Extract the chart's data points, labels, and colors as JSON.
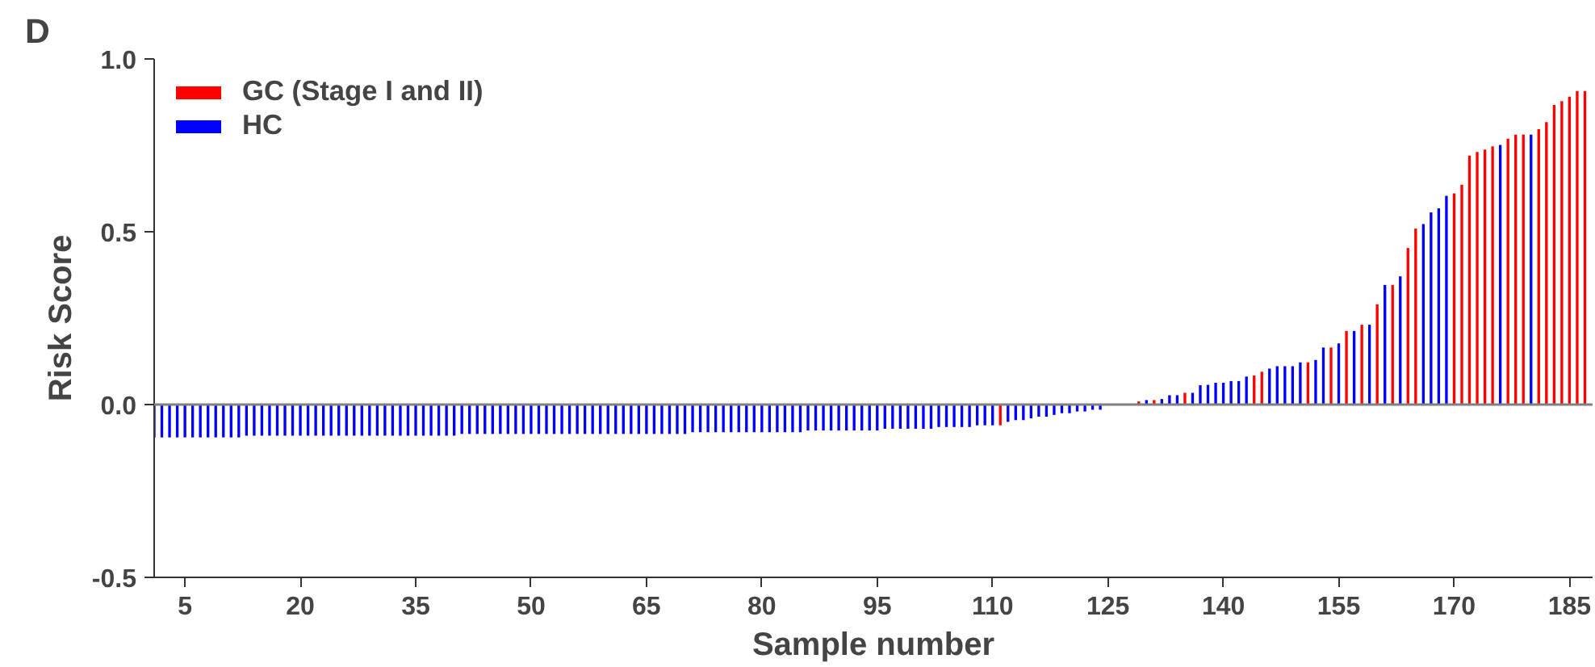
{
  "chart_data": {
    "type": "bar",
    "xlabel": "Sample number",
    "ylabel": "Risk Score",
    "annotations": [
      "D"
    ],
    "xlim": [
      1,
      188
    ],
    "xticks": [
      5,
      20,
      35,
      50,
      65,
      80,
      95,
      110,
      125,
      140,
      155,
      170,
      185
    ],
    "ylim": [
      -0.5,
      1.0
    ],
    "yticks": [
      -0.5,
      {
        "value": 0,
        "label": "0.0"
      },
      0.5,
      {
        "value": 1.0,
        "label": "1.0"
      }
    ],
    "grid": false,
    "legend": "top left",
    "ref_lines": [
      {
        "axis": "y",
        "value": 0,
        "color": "#808080"
      }
    ],
    "series": [
      {
        "name": "GC (Stage I and II)",
        "color": "#ff0000",
        "x": [
          111,
          129,
          131,
          135,
          144,
          145,
          151,
          154,
          156,
          158,
          160,
          162,
          164,
          165,
          170,
          171,
          172,
          173,
          174,
          175,
          177,
          178,
          179,
          181,
          182,
          183,
          184,
          185,
          186,
          187
        ],
        "values": [
          -0.06,
          0.009,
          0.013,
          0.034,
          0.084,
          0.095,
          0.122,
          0.165,
          0.213,
          0.231,
          0.29,
          0.346,
          0.453,
          0.509,
          0.611,
          0.636,
          0.72,
          0.731,
          0.738,
          0.747,
          0.769,
          0.781,
          0.781,
          0.797,
          0.817,
          0.867,
          0.878,
          0.891,
          0.907,
          0.907
        ]
      },
      {
        "name": "HC",
        "color": "#0000ff",
        "x": [
          1,
          2,
          3,
          4,
          5,
          6,
          7,
          8,
          9,
          10,
          11,
          12,
          13,
          14,
          15,
          16,
          17,
          18,
          19,
          20,
          21,
          22,
          23,
          24,
          25,
          26,
          27,
          28,
          29,
          30,
          31,
          32,
          33,
          34,
          35,
          36,
          37,
          38,
          39,
          40,
          41,
          42,
          43,
          44,
          45,
          46,
          47,
          48,
          49,
          50,
          51,
          52,
          53,
          54,
          55,
          56,
          57,
          58,
          59,
          60,
          61,
          62,
          63,
          64,
          65,
          66,
          67,
          68,
          69,
          70,
          71,
          72,
          73,
          74,
          75,
          76,
          77,
          78,
          79,
          80,
          81,
          82,
          83,
          84,
          85,
          86,
          87,
          88,
          89,
          90,
          91,
          92,
          93,
          94,
          95,
          96,
          97,
          98,
          99,
          100,
          101,
          102,
          103,
          104,
          105,
          106,
          107,
          108,
          109,
          110,
          112,
          113,
          114,
          115,
          116,
          117,
          118,
          119,
          120,
          121,
          122,
          123,
          124,
          125,
          126,
          127,
          128,
          130,
          132,
          133,
          134,
          136,
          137,
          138,
          139,
          140,
          141,
          142,
          143,
          146,
          147,
          148,
          149,
          150,
          152,
          153,
          155,
          157,
          159,
          161,
          163,
          166,
          167,
          168,
          169,
          176,
          180
        ],
        "values": [
          -0.095,
          -0.095,
          -0.095,
          -0.095,
          -0.095,
          -0.095,
          -0.095,
          -0.095,
          -0.095,
          -0.095,
          -0.095,
          -0.095,
          -0.09,
          -0.09,
          -0.09,
          -0.09,
          -0.09,
          -0.09,
          -0.09,
          -0.09,
          -0.09,
          -0.09,
          -0.09,
          -0.09,
          -0.09,
          -0.09,
          -0.09,
          -0.09,
          -0.09,
          -0.09,
          -0.09,
          -0.09,
          -0.09,
          -0.09,
          -0.09,
          -0.09,
          -0.09,
          -0.09,
          -0.09,
          -0.09,
          -0.085,
          -0.085,
          -0.085,
          -0.085,
          -0.085,
          -0.085,
          -0.085,
          -0.085,
          -0.085,
          -0.085,
          -0.085,
          -0.085,
          -0.085,
          -0.085,
          -0.085,
          -0.085,
          -0.085,
          -0.085,
          -0.085,
          -0.085,
          -0.085,
          -0.085,
          -0.085,
          -0.085,
          -0.085,
          -0.085,
          -0.085,
          -0.085,
          -0.085,
          -0.085,
          -0.08,
          -0.08,
          -0.08,
          -0.08,
          -0.08,
          -0.08,
          -0.08,
          -0.08,
          -0.08,
          -0.08,
          -0.08,
          -0.08,
          -0.08,
          -0.08,
          -0.08,
          -0.075,
          -0.075,
          -0.075,
          -0.075,
          -0.075,
          -0.075,
          -0.075,
          -0.075,
          -0.075,
          -0.075,
          -0.07,
          -0.07,
          -0.07,
          -0.07,
          -0.07,
          -0.07,
          -0.07,
          -0.065,
          -0.065,
          -0.065,
          -0.065,
          -0.065,
          -0.06,
          -0.06,
          -0.06,
          -0.05,
          -0.045,
          -0.045,
          -0.04,
          -0.035,
          -0.035,
          -0.03,
          -0.025,
          -0.025,
          -0.02,
          -0.02,
          -0.015,
          -0.015,
          null,
          null,
          null,
          null,
          0.013,
          0.016,
          0.027,
          0.027,
          0.034,
          0.056,
          0.057,
          0.063,
          0.063,
          0.068,
          0.068,
          0.081,
          0.104,
          0.111,
          0.111,
          0.111,
          0.122,
          0.129,
          0.165,
          0.177,
          0.213,
          0.231,
          0.346,
          0.371,
          0.522,
          0.556,
          0.568,
          0.604,
          0.751,
          0.781
        ]
      }
    ]
  }
}
